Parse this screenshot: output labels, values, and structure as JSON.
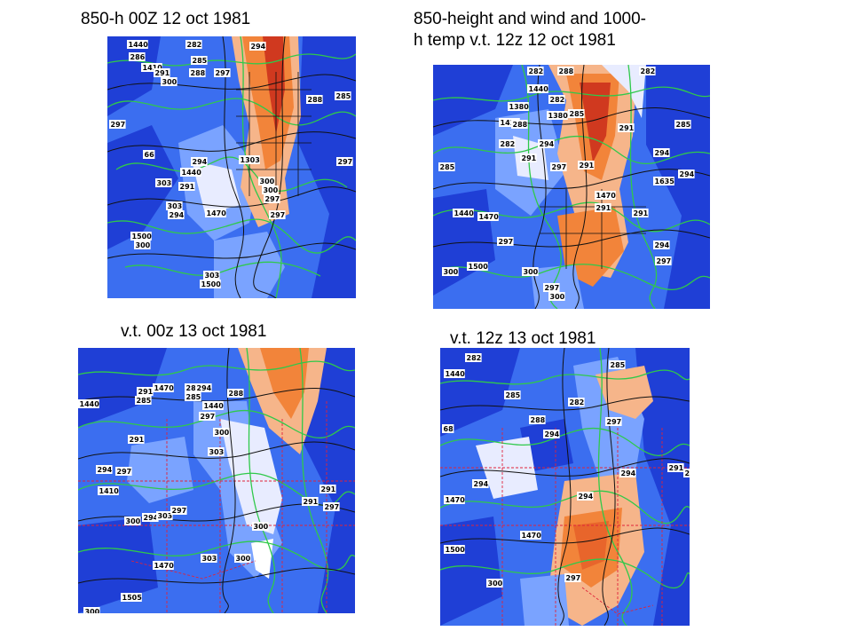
{
  "panels": [
    {
      "id": "p1",
      "caption": "850-h 00Z 12 oct 1981",
      "labels": [
        "1440",
        "282",
        "294",
        "286",
        "1410",
        "285",
        "291",
        "288",
        "297",
        "300",
        "285",
        "288",
        "297",
        "66",
        "294",
        "1303",
        "1440",
        "297",
        "303",
        "291",
        "300",
        "303",
        "294",
        "300",
        "1470",
        "1500",
        "300",
        "303",
        "1500",
        "297",
        "297"
      ]
    },
    {
      "id": "p2",
      "caption": "850-height and wind and 1000-\nh temp v.t. 12z 12 oct 1981",
      "labels": [
        "282",
        "288",
        "282",
        "1440",
        "282",
        "1380",
        "285",
        "1410",
        "288",
        "1380",
        "282",
        "294",
        "291",
        "297",
        "291",
        "285",
        "291",
        "1470",
        "1635",
        "285",
        "294",
        "294",
        "291",
        "1440",
        "1470",
        "297",
        "291",
        "294",
        "297",
        "300",
        "1500",
        "300",
        "297",
        "300"
      ]
    },
    {
      "id": "p3",
      "caption": "v.t. 00z 13 oct 1981",
      "labels": [
        "1440",
        "291",
        "285",
        "1470",
        "288",
        "285",
        "294",
        "288",
        "1440",
        "297",
        "291",
        "300",
        "303",
        "294",
        "297",
        "291",
        "1410",
        "294",
        "303",
        "300",
        "300",
        "291",
        "297",
        "297",
        "303",
        "1470",
        "300",
        "1505",
        "300"
      ]
    },
    {
      "id": "p4",
      "caption": "v.t. 12z 13 oct 1981",
      "labels": [
        "282",
        "1440",
        "285",
        "285",
        "282",
        "288",
        "294",
        "297",
        "68",
        "291",
        "294",
        "291",
        "294",
        "1470",
        "294",
        "1470",
        "1500",
        "300",
        "297"
      ]
    }
  ],
  "colors": {
    "deep_blue": "#1f3fd6",
    "mid_blue": "#3b6ef0",
    "light_blue": "#7aa3ff",
    "pale": "#e8ecff",
    "orange": "#f2843a",
    "red": "#d0391f",
    "contour_green": "#2fc94a",
    "height_black": "#111111",
    "border_red": "#e0233a"
  }
}
